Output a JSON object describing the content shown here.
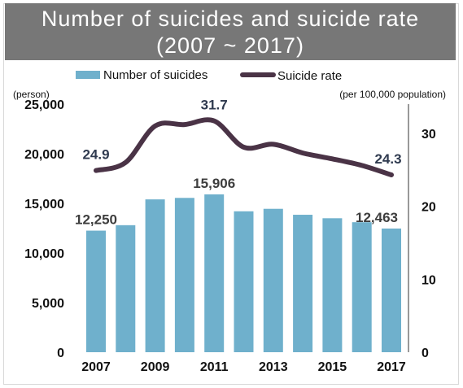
{
  "chart_data": {
    "type": "bar",
    "title": [
      "Number of suicides and suicide rate",
      "(2007 ~ 2017)"
    ],
    "x": [
      2007,
      2008,
      2009,
      2010,
      2011,
      2012,
      2013,
      2014,
      2015,
      2016,
      2017
    ],
    "x_tick_labels": [
      "2007",
      "2009",
      "2011",
      "2013",
      "2015",
      "2017"
    ],
    "series": [
      {
        "name": "Number of suicides",
        "type": "bar",
        "axis": "left",
        "color": "#6fb0cc",
        "values": [
          12250,
          12800,
          15400,
          15550,
          15906,
          14200,
          14450,
          13850,
          13500,
          13100,
          12463
        ]
      },
      {
        "name": "Suicide rate",
        "type": "line",
        "axis": "right",
        "color": "#4a3346",
        "values": [
          24.9,
          26.0,
          31.0,
          31.2,
          31.7,
          28.1,
          28.5,
          27.3,
          26.5,
          25.6,
          24.3
        ]
      }
    ],
    "y_left": {
      "unit_label": "(person)",
      "ylim": [
        0,
        25000
      ],
      "ticks": [
        "0",
        "5,000",
        "10,000",
        "15,000",
        "20,000",
        "25,000"
      ]
    },
    "y_right": {
      "unit_label": "(per 100,000 population)",
      "ylim": [
        0,
        30
      ],
      "ticks": [
        "0",
        "10",
        "20",
        "30"
      ]
    },
    "data_labels": [
      {
        "series": "Suicide rate",
        "index": 0,
        "text": "24.9"
      },
      {
        "series": "Suicide rate",
        "index": 4,
        "text": "31.7"
      },
      {
        "series": "Suicide rate",
        "index": 10,
        "text": "24.3"
      },
      {
        "series": "Number of suicides",
        "index": 0,
        "text": "12,250"
      },
      {
        "series": "Number of suicides",
        "index": 4,
        "text": "15,906"
      },
      {
        "series": "Number of suicides",
        "index": 10,
        "text": "12,463"
      }
    ],
    "legend": {
      "position": "top",
      "entries": [
        "Number of suicides",
        "Suicide rate"
      ]
    },
    "grid": false
  },
  "colors": {
    "title_band": "#777777",
    "bar": "#6fb0cc",
    "line": "#4a3346",
    "label_text": "#3d3d3d",
    "rate_label_text": "#2f3a4f"
  }
}
